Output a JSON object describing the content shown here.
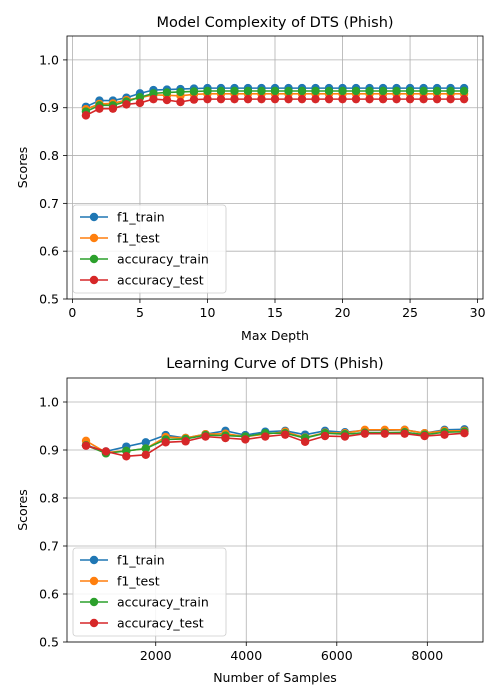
{
  "palette": {
    "f1_train": "#1f77b4",
    "f1_test": "#ff7f0e",
    "accuracy_train": "#2ca02c",
    "accuracy_test": "#d62728"
  },
  "chart_data": [
    {
      "type": "line",
      "title": "Model Complexity of DTS (Phish)",
      "xlabel": "Max Depth",
      "ylabel": "Scores",
      "xlim": [
        -0.4,
        30.4
      ],
      "ylim": [
        0.5,
        1.05
      ],
      "xticks": [
        0,
        5,
        10,
        15,
        20,
        25,
        30
      ],
      "yticks": [
        0.5,
        0.6,
        0.7,
        0.8,
        0.9,
        1.0
      ],
      "grid": true,
      "legend": "lower-left",
      "x": [
        1,
        2,
        3,
        4,
        5,
        6,
        7,
        8,
        9,
        10,
        11,
        12,
        13,
        14,
        15,
        16,
        17,
        18,
        19,
        20,
        21,
        22,
        23,
        24,
        25,
        26,
        27,
        28,
        29
      ],
      "series": [
        {
          "name": "f1_train",
          "values": [
            0.902,
            0.915,
            0.915,
            0.921,
            0.93,
            0.937,
            0.938,
            0.939,
            0.94,
            0.941,
            0.941,
            0.941,
            0.941,
            0.941,
            0.941,
            0.941,
            0.941,
            0.941,
            0.941,
            0.941,
            0.941,
            0.941,
            0.941,
            0.941,
            0.941,
            0.941,
            0.941,
            0.941,
            0.941
          ]
        },
        {
          "name": "f1_test",
          "values": [
            0.897,
            0.908,
            0.909,
            0.916,
            0.921,
            0.927,
            0.926,
            0.925,
            0.928,
            0.929,
            0.929,
            0.929,
            0.929,
            0.929,
            0.929,
            0.929,
            0.929,
            0.929,
            0.929,
            0.929,
            0.929,
            0.929,
            0.929,
            0.929,
            0.929,
            0.929,
            0.929,
            0.929,
            0.929
          ]
        },
        {
          "name": "accuracy_train",
          "values": [
            0.892,
            0.905,
            0.905,
            0.913,
            0.922,
            0.93,
            0.932,
            0.933,
            0.934,
            0.935,
            0.935,
            0.935,
            0.935,
            0.935,
            0.935,
            0.935,
            0.935,
            0.935,
            0.935,
            0.935,
            0.935,
            0.935,
            0.935,
            0.935,
            0.935,
            0.935,
            0.935,
            0.935,
            0.935
          ]
        },
        {
          "name": "accuracy_test",
          "values": [
            0.884,
            0.898,
            0.898,
            0.907,
            0.91,
            0.918,
            0.916,
            0.912,
            0.917,
            0.918,
            0.918,
            0.918,
            0.918,
            0.918,
            0.918,
            0.918,
            0.918,
            0.918,
            0.918,
            0.918,
            0.918,
            0.918,
            0.918,
            0.918,
            0.918,
            0.918,
            0.918,
            0.918,
            0.918
          ]
        }
      ]
    },
    {
      "type": "line",
      "title": "Learning Curve of DTS (Phish)",
      "xlabel": "Number of Samples",
      "ylabel": "Scores",
      "xlim": [
        40,
        9230
      ],
      "ylim": [
        0.5,
        1.05
      ],
      "xticks": [
        2000,
        4000,
        6000,
        8000
      ],
      "yticks": [
        0.5,
        0.6,
        0.7,
        0.8,
        0.9,
        1.0
      ],
      "grid": true,
      "legend": "lower-left",
      "x": [
        460,
        900,
        1350,
        1780,
        2220,
        2660,
        3100,
        3540,
        3980,
        4420,
        4860,
        5300,
        5740,
        6180,
        6620,
        7060,
        7500,
        7940,
        8380,
        8820
      ],
      "series": [
        {
          "name": "f1_train",
          "values": [
            0.91,
            0.897,
            0.907,
            0.916,
            0.931,
            0.925,
            0.933,
            0.94,
            0.931,
            0.938,
            0.94,
            0.932,
            0.94,
            0.937,
            0.941,
            0.941,
            0.942,
            0.935,
            0.942,
            0.943
          ]
        },
        {
          "name": "f1_test",
          "values": [
            0.919,
            0.895,
            0.898,
            0.903,
            0.927,
            0.925,
            0.933,
            0.934,
            0.928,
            0.933,
            0.938,
            0.926,
            0.936,
            0.935,
            0.942,
            0.942,
            0.942,
            0.935,
            0.94,
            0.94
          ]
        },
        {
          "name": "accuracy_train",
          "values": [
            0.91,
            0.893,
            0.898,
            0.903,
            0.922,
            0.923,
            0.931,
            0.93,
            0.928,
            0.935,
            0.935,
            0.925,
            0.935,
            0.933,
            0.936,
            0.936,
            0.937,
            0.932,
            0.937,
            0.938
          ]
        },
        {
          "name": "accuracy_test",
          "values": [
            0.909,
            0.897,
            0.887,
            0.89,
            0.916,
            0.918,
            0.928,
            0.925,
            0.922,
            0.928,
            0.932,
            0.917,
            0.929,
            0.928,
            0.934,
            0.934,
            0.934,
            0.929,
            0.932,
            0.935
          ]
        }
      ]
    }
  ]
}
